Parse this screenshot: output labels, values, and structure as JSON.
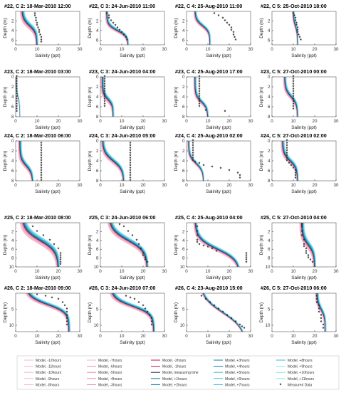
{
  "colors": {
    "pink_light": "#f4b6c8",
    "pink_mid": "#e88aa7",
    "red_dark": "#c0134a",
    "navy": "#1f2d4d",
    "cyan_light": "#88e0ee",
    "cyan_mid": "#3fb8d8",
    "teal_dark": "#0a7ea8",
    "measured": "#222222"
  },
  "axis_labels": {
    "y": "Depth (m)",
    "x": "Salinity (ppt)"
  },
  "legend": {
    "marker_icon": "asterisk-icon",
    "items": [
      "Model, -12hours",
      "Model, -7hours",
      "Model, -2hours",
      "Model, +3hours",
      "Model, +8hours",
      "Model, -11hours",
      "Model, -6hours",
      "Model, -1hours",
      "Model, +4hours",
      "Model, +9hours",
      "Model, -10hours",
      "Model, -5hours",
      "Model, measuring time",
      "Model, +5hours",
      "Model, +10hours",
      "Model, -9hours",
      "Model, -4hours",
      "Model, +1hours",
      "Model, +6hours",
      "Model, +11hours",
      "Model, -8hours",
      "Model, -3hours",
      "Model, +2hours",
      "Model, +7hours",
      "Measured Data"
    ]
  },
  "chart_data": [
    {
      "title": "#22, C 2: 18-Mar-2010 12:00",
      "type": "line",
      "xlim": [
        0,
        30
      ],
      "ylim": [
        0,
        7
      ],
      "xticks": [
        0,
        10,
        20,
        30
      ],
      "yticks": [
        2,
        4,
        6
      ],
      "surface": 3,
      "bottom": 10,
      "half": 3,
      "cline": 1.5,
      "spread": 1.8,
      "measured": {
        "x": [
          9,
          9,
          9.5,
          9.5,
          10,
          10,
          10.5,
          11,
          11,
          11.5,
          12,
          12,
          12
        ],
        "y": [
          0.5,
          1,
          1.5,
          2,
          2.5,
          3,
          3.5,
          4,
          4.5,
          5,
          5.5,
          6,
          6.5
        ]
      }
    },
    {
      "title": "#22, C 3: 24-Jun-2010 11:00",
      "type": "line",
      "xlim": [
        0,
        30
      ],
      "ylim": [
        0,
        7
      ],
      "xticks": [
        0,
        10,
        20,
        30
      ],
      "yticks": [
        2,
        4,
        6
      ],
      "surface": 3,
      "bottom": 13,
      "half": 4,
      "cline": 1.2,
      "spread": 1.2,
      "measured": {
        "x": [
          3,
          4,
          4,
          5,
          6,
          7,
          8,
          9,
          10,
          11,
          12,
          12.5
        ],
        "y": [
          0.5,
          1,
          1.5,
          2,
          2.5,
          3,
          3.5,
          4,
          4.5,
          5,
          5.5,
          6
        ]
      }
    },
    {
      "title": "#22, C 4: 25-Aug-2010 11:00",
      "type": "line",
      "xlim": [
        0,
        30
      ],
      "ylim": [
        0,
        7
      ],
      "xticks": [
        0,
        10,
        20,
        30
      ],
      "yticks": [
        2,
        4,
        6
      ],
      "surface": 4,
      "bottom": 11,
      "half": 3,
      "cline": 1.3,
      "spread": 1.2,
      "measured": {
        "x": [
          13,
          15,
          17,
          18,
          19,
          20,
          21,
          21,
          22,
          22,
          22.5,
          23
        ],
        "y": [
          0.5,
          1,
          1.5,
          2,
          2.5,
          3,
          3.5,
          4,
          4.5,
          5,
          5.5,
          6
        ]
      }
    },
    {
      "title": "#22, C 5: 25-Oct-2010 18:00",
      "type": "line",
      "xlim": [
        0,
        30
      ],
      "ylim": [
        0,
        7
      ],
      "xticks": [
        0,
        10,
        20,
        30
      ],
      "yticks": [
        2,
        4,
        6
      ],
      "surface": 10,
      "bottom": 12,
      "half": 3,
      "cline": 1.5,
      "spread": 1,
      "measured": {
        "x": [
          10,
          10.5,
          11,
          11,
          11.5,
          11.5,
          12,
          12,
          12,
          12.5,
          13,
          13.5
        ],
        "y": [
          0.5,
          1,
          1.5,
          2,
          2.5,
          3,
          3.5,
          4,
          4.5,
          5,
          5.5,
          6
        ]
      }
    },
    {
      "title": "#23, C 2: 18-Mar-2010 03:00",
      "type": "line",
      "xlim": [
        0,
        30
      ],
      "ylim": [
        0,
        8
      ],
      "xticks": [
        0,
        10,
        20,
        30
      ],
      "yticks": [
        0,
        2,
        4,
        6,
        8
      ],
      "surface": 0.3,
      "bottom": 2,
      "half": 4,
      "cline": 1.5,
      "spread": 0.4,
      "measured": {
        "x": [
          0.5,
          0.5,
          0.5,
          0.5,
          0.5,
          0.5,
          0.5,
          0.5,
          0.5,
          0.5,
          0.5,
          0.5,
          0.5,
          0.5,
          0.5
        ],
        "y": [
          0,
          0.5,
          1,
          1.5,
          2,
          2.5,
          3,
          3.5,
          4,
          4.5,
          5,
          5.5,
          6,
          6.5,
          7
        ]
      }
    },
    {
      "title": "#23, C 3: 24-Jun-2010 04:00",
      "type": "line",
      "xlim": [
        0,
        30
      ],
      "ylim": [
        0,
        8
      ],
      "xticks": [
        0,
        10,
        20,
        30
      ],
      "yticks": [
        0,
        2,
        4,
        6,
        8
      ],
      "surface": 1,
      "bottom": 6,
      "half": 4.5,
      "cline": 1.2,
      "spread": 1.5,
      "measured": {
        "x": [
          2,
          2,
          2,
          2,
          2,
          2,
          2,
          2,
          2,
          2,
          2,
          2,
          2
        ],
        "y": [
          0,
          0.5,
          1,
          1.5,
          2,
          2.5,
          3,
          3.5,
          4,
          4.5,
          5,
          5.5,
          6
        ]
      }
    },
    {
      "title": "#23, C 4: 25-Aug-2010 17:00",
      "type": "line",
      "xlim": [
        0,
        30
      ],
      "ylim": [
        0,
        8
      ],
      "xticks": [
        0,
        10,
        20,
        30
      ],
      "yticks": [
        0,
        2,
        4,
        6,
        8
      ],
      "surface": 4,
      "bottom": 10,
      "half": 5,
      "cline": 1.3,
      "spread": 1.2,
      "measured": {
        "x": [
          6,
          6,
          6,
          6,
          6,
          6,
          6,
          6,
          6,
          6,
          6,
          6,
          6,
          9,
          18
        ],
        "y": [
          0,
          0.5,
          1,
          1.5,
          2,
          2.5,
          3,
          3.5,
          4,
          4.5,
          5,
          5.5,
          6,
          6.8,
          7
        ]
      }
    },
    {
      "title": "#23, C 5: 27-Oct-2010 00:00",
      "type": "line",
      "xlim": [
        0,
        30
      ],
      "ylim": [
        0,
        8
      ],
      "xticks": [
        0,
        10,
        20,
        30
      ],
      "yticks": [
        0,
        2,
        4,
        6,
        8
      ],
      "surface": 6,
      "bottom": 12,
      "half": 4,
      "cline": 1.5,
      "spread": 1.3,
      "measured": {
        "x": [
          10,
          10,
          10,
          10,
          10,
          10,
          10,
          10,
          10,
          10,
          10,
          10,
          10,
          10
        ],
        "y": [
          0,
          0.5,
          1,
          1.5,
          2,
          2.5,
          3,
          3.5,
          4,
          4.5,
          5,
          5.5,
          6,
          6.5
        ]
      }
    },
    {
      "title": "#24, C 2: 18-Mar-2010 06:00",
      "type": "line",
      "xlim": [
        0,
        30
      ],
      "ylim": [
        0,
        8
      ],
      "xticks": [
        0,
        10,
        20,
        30
      ],
      "yticks": [
        0,
        2,
        4,
        6,
        8
      ],
      "surface": 2,
      "bottom": 8,
      "half": 5,
      "cline": 1.5,
      "spread": 1.5,
      "measured": {
        "x": [
          12,
          12,
          12,
          12,
          12,
          12,
          12,
          12,
          12,
          12,
          12,
          12,
          12,
          12,
          12,
          12
        ],
        "y": [
          0.5,
          1,
          1.5,
          2,
          2.5,
          3,
          3.5,
          4,
          4.5,
          5,
          5.5,
          6,
          6.5,
          7,
          7.5,
          8
        ]
      }
    },
    {
      "title": "#24, C 3: 24-Jun-2010 05:00",
      "type": "line",
      "xlim": [
        0,
        30
      ],
      "ylim": [
        0,
        8
      ],
      "xticks": [
        0,
        10,
        20,
        30
      ],
      "yticks": [
        0,
        2,
        4,
        6,
        8
      ],
      "surface": 1,
      "bottom": 11,
      "half": 4,
      "cline": 1.8,
      "spread": 1.5,
      "measured": {
        "x": [
          14,
          14,
          14,
          14,
          14,
          14,
          14,
          14,
          14,
          14,
          14,
          14,
          14,
          14,
          14,
          14
        ],
        "y": [
          0.5,
          1,
          1.5,
          2,
          2.5,
          3,
          3.5,
          4,
          4.5,
          5,
          5.5,
          6,
          6.5,
          7,
          7.5,
          8
        ]
      }
    },
    {
      "title": "#24, C 4: 25-Aug-2010 02:00",
      "type": "line",
      "xlim": [
        0,
        30
      ],
      "ylim": [
        0,
        8
      ],
      "xticks": [
        0,
        10,
        20,
        30
      ],
      "yticks": [
        0,
        2,
        4,
        6,
        8
      ],
      "surface": 1,
      "bottom": 8,
      "half": 4.5,
      "cline": 1.5,
      "spread": 1,
      "measured": {
        "x": [
          3,
          3,
          3,
          3,
          3,
          3,
          3,
          3,
          3,
          4,
          6,
          8,
          12,
          16,
          20,
          24,
          25,
          25
        ],
        "y": [
          0,
          0.5,
          1,
          1.5,
          2,
          2.5,
          3,
          3.5,
          4,
          4.3,
          4.6,
          5,
          5.3,
          5.6,
          6,
          6.5,
          7,
          7.5
        ]
      }
    },
    {
      "title": "#24, C 5: 27-Oct-2010 02:00",
      "type": "line",
      "xlim": [
        0,
        30
      ],
      "ylim": [
        0,
        8
      ],
      "xticks": [
        0,
        10,
        20,
        30
      ],
      "yticks": [
        0,
        2,
        4,
        6,
        8
      ],
      "surface": 5,
      "bottom": 12,
      "half": 4,
      "cline": 1.5,
      "spread": 1.5,
      "measured": {
        "x": [
          7,
          7,
          7,
          7,
          7,
          7,
          7,
          7,
          7,
          8,
          9,
          10,
          11,
          11,
          11,
          11
        ],
        "y": [
          0,
          0.5,
          1,
          1.5,
          2,
          2.5,
          3,
          3.5,
          4,
          4.5,
          5,
          5.5,
          6,
          6.5,
          7,
          7.5
        ]
      }
    },
    {
      "title": "#25, C 2: 18-Mar-2010 08:00",
      "type": "line",
      "xlim": [
        0,
        30
      ],
      "ylim": [
        0,
        10
      ],
      "xticks": [
        0,
        10,
        20,
        30
      ],
      "yticks": [
        2,
        4,
        6,
        8,
        10
      ],
      "surface": 3,
      "bottom": 20,
      "half": 4,
      "cline": 2.5,
      "spread": 2.5,
      "measured": {
        "x": [
          8,
          10,
          13,
          16,
          18,
          20,
          21,
          21,
          21,
          21,
          21,
          21
        ],
        "y": [
          1,
          2,
          3,
          4,
          5,
          6,
          7,
          7.5,
          8,
          8.5,
          9,
          9.5
        ]
      }
    },
    {
      "title": "#25, C 3: 24-Jun-2010 06:00",
      "type": "line",
      "xlim": [
        0,
        30
      ],
      "ylim": [
        0,
        10
      ],
      "xticks": [
        0,
        10,
        20,
        30
      ],
      "yticks": [
        2,
        4,
        6,
        8,
        10
      ],
      "surface": 4,
      "bottom": 22,
      "half": 4,
      "cline": 2.5,
      "spread": 2,
      "measured": {
        "x": [
          9,
          11,
          13,
          15,
          17,
          18,
          19,
          20,
          20,
          21,
          21,
          22
        ],
        "y": [
          0.5,
          1,
          2,
          3,
          4,
          5,
          6,
          7,
          7.5,
          8,
          8.5,
          9
        ]
      }
    },
    {
      "title": "#25, C 4: 25-Aug-2010 04:00",
      "type": "line",
      "xlim": [
        0,
        30
      ],
      "ylim": [
        0,
        10
      ],
      "xticks": [
        0,
        10,
        20,
        30
      ],
      "yticks": [
        2,
        4,
        6,
        8,
        10
      ],
      "surface": 4,
      "bottom": 25,
      "half": 6,
      "cline": 2.5,
      "spread": 1.5,
      "measured": {
        "x": [
          5,
          5,
          5,
          5,
          5,
          6,
          8,
          10,
          12,
          14,
          28,
          28,
          28,
          28,
          28
        ],
        "y": [
          1,
          2,
          3,
          4,
          4.5,
          5,
          5.3,
          5.6,
          6,
          6.5,
          7,
          7.5,
          8,
          8.5,
          9
        ]
      }
    },
    {
      "title": "#25, C 5: 27-Oct-2010 04:00",
      "type": "line",
      "xlim": [
        0,
        30
      ],
      "ylim": [
        0,
        10
      ],
      "xticks": [
        0,
        10,
        20,
        30
      ],
      "yticks": [
        2,
        4,
        6,
        8,
        10
      ],
      "surface": 14,
      "bottom": 20,
      "half": 5,
      "cline": 2,
      "spread": 2,
      "measured": {
        "x": [
          14,
          14,
          14,
          14,
          15,
          15,
          15,
          16,
          16,
          16,
          17,
          17,
          18,
          19
        ],
        "y": [
          0.5,
          1,
          2,
          3,
          4,
          5,
          5.5,
          6,
          6.5,
          7,
          7.5,
          8,
          8.5,
          9
        ]
      }
    },
    {
      "title": "#26, C 2: 18-Mar-2010 09:00",
      "type": "line",
      "xlim": [
        0,
        30
      ],
      "ylim": [
        0,
        12
      ],
      "xticks": [
        0,
        10,
        20,
        30
      ],
      "yticks": [
        5,
        10
      ],
      "surface": 5,
      "bottom": 25,
      "half": 3.5,
      "cline": 2.5,
      "spread": 2,
      "measured": {
        "x": [
          10,
          14,
          17,
          20,
          22,
          23,
          24,
          24,
          24,
          24,
          24,
          24
        ],
        "y": [
          0.5,
          1,
          1.5,
          2,
          3,
          4,
          5,
          6,
          7,
          8,
          9,
          10
        ]
      }
    },
    {
      "title": "#26, C 3: 24-Jun-2010 07:00",
      "type": "line",
      "xlim": [
        0,
        30
      ],
      "ylim": [
        0,
        12
      ],
      "xticks": [
        0,
        10,
        20,
        30
      ],
      "yticks": [
        5,
        10
      ],
      "surface": 5,
      "bottom": 25,
      "half": 4,
      "cline": 2.5,
      "spread": 2,
      "measured": {
        "x": [
          12,
          14,
          16,
          18,
          20,
          21,
          22,
          23,
          24,
          24,
          24
        ],
        "y": [
          1,
          1.5,
          2,
          3,
          4,
          5,
          6,
          7,
          8,
          9,
          10
        ]
      }
    },
    {
      "title": "#26, C 4: 23-Aug-2010 15:00",
      "type": "line",
      "xlim": [
        0,
        30
      ],
      "ylim": [
        0,
        12
      ],
      "xticks": [
        0,
        10,
        20,
        30
      ],
      "yticks": [
        5,
        10
      ],
      "surface": 6,
      "bottom": 28,
      "half": 6,
      "cline": 5,
      "spread": 1,
      "measured": {
        "x": [
          7,
          9,
          11,
          13,
          15,
          17,
          19,
          21,
          23,
          25,
          26,
          27
        ],
        "y": [
          1,
          2,
          3,
          4,
          5,
          6,
          7,
          8,
          9,
          10,
          10.5,
          11
        ]
      }
    },
    {
      "title": "#26, C 5: 27-Oct-2010 06:00",
      "type": "line",
      "xlim": [
        0,
        30
      ],
      "ylim": [
        0,
        12
      ],
      "xticks": [
        0,
        10,
        20,
        30
      ],
      "yticks": [
        5,
        10
      ],
      "surface": 21,
      "bottom": 25,
      "half": 5,
      "cline": 2.5,
      "spread": 1.5,
      "measured": {
        "x": [
          21,
          21,
          21,
          22,
          22,
          22,
          23,
          23,
          23,
          24,
          24
        ],
        "y": [
          1,
          2,
          3,
          4,
          5,
          6,
          7,
          8,
          9,
          10,
          11
        ]
      }
    }
  ]
}
